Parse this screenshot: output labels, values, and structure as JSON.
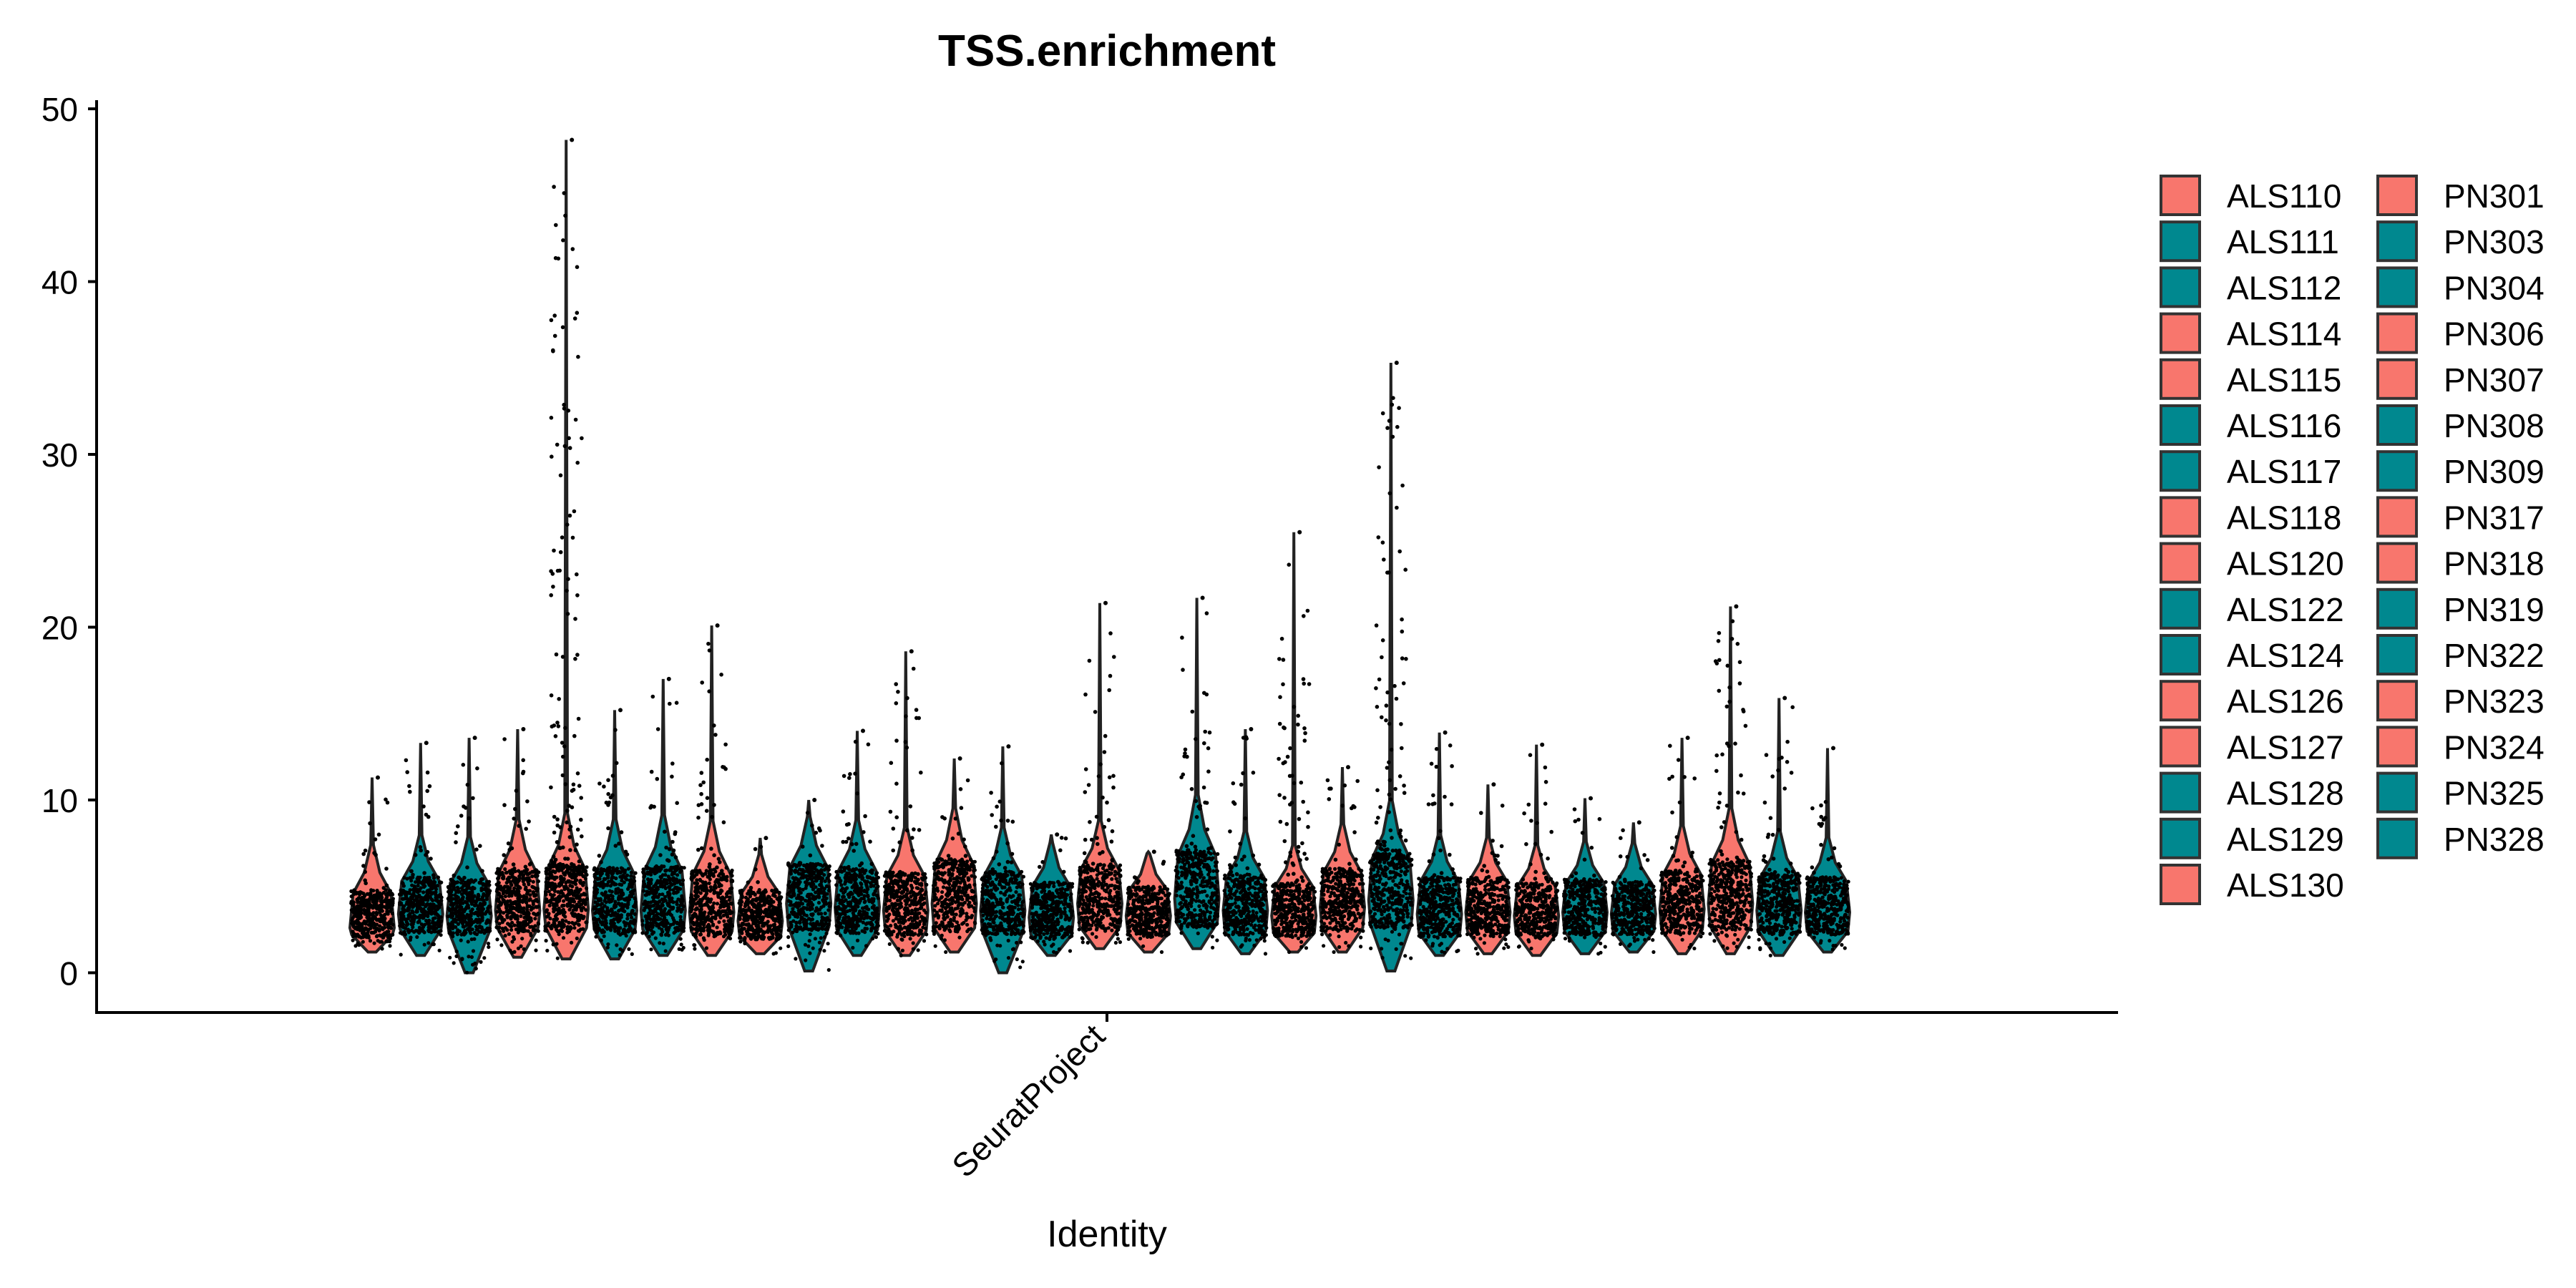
{
  "chart_data": {
    "type": "violin",
    "title": "TSS.enrichment",
    "xlabel": "Identity",
    "ylabel": "",
    "categories": [
      "SeuratProject"
    ],
    "ylim": [
      -2.3,
      50.5
    ],
    "yticks": [
      0,
      10,
      20,
      30,
      40,
      50
    ],
    "grid": false,
    "legend_position": "right",
    "colors": {
      "ALS": "#F8766D",
      "PN": "#00888F",
      "points": "#000000",
      "axis": "#000000"
    },
    "series": [
      {
        "name": "ALS110",
        "color": "#F8766D",
        "min": 1.2,
        "q1": 2.2,
        "median": 2.6,
        "q3": 4.6,
        "max": 11.3
      },
      {
        "name": "ALS111",
        "color": "#00888F",
        "min": 1.0,
        "q1": 2.5,
        "median": 3.4,
        "q3": 5.3,
        "max": 13.3
      },
      {
        "name": "ALS112",
        "color": "#00888F",
        "min": 0.0,
        "q1": 2.4,
        "median": 3.3,
        "q3": 5.2,
        "max": 13.6
      },
      {
        "name": "ALS114",
        "color": "#F8766D",
        "min": 0.9,
        "q1": 2.6,
        "median": 3.6,
        "q3": 5.8,
        "max": 14.1
      },
      {
        "name": "ALS115",
        "color": "#F8766D",
        "min": 0.8,
        "q1": 2.6,
        "median": 3.7,
        "q3": 6.0,
        "max": 48.2
      },
      {
        "name": "ALS116",
        "color": "#00888F",
        "min": 0.8,
        "q1": 2.5,
        "median": 3.6,
        "q3": 5.8,
        "max": 15.2
      },
      {
        "name": "ALS117",
        "color": "#00888F",
        "min": 1.0,
        "q1": 2.5,
        "median": 3.6,
        "q3": 5.9,
        "max": 17.0
      },
      {
        "name": "ALS118",
        "color": "#F8766D",
        "min": 1.0,
        "q1": 2.4,
        "median": 3.5,
        "q3": 5.7,
        "max": 20.1
      },
      {
        "name": "ALS120",
        "color": "#F8766D",
        "min": 1.1,
        "q1": 2.1,
        "median": 3.0,
        "q3": 4.6,
        "max": 7.8
      },
      {
        "name": "ALS122",
        "color": "#00888F",
        "min": 0.1,
        "q1": 2.7,
        "median": 4.0,
        "q3": 6.1,
        "max": 10.0
      },
      {
        "name": "ALS124",
        "color": "#00888F",
        "min": 1.0,
        "q1": 2.5,
        "median": 3.8,
        "q3": 5.9,
        "max": 14.0
      },
      {
        "name": "ALS126",
        "color": "#F8766D",
        "min": 1.0,
        "q1": 2.4,
        "median": 3.6,
        "q3": 5.6,
        "max": 18.6
      },
      {
        "name": "ALS127",
        "color": "#F8766D",
        "min": 1.2,
        "q1": 2.6,
        "median": 4.0,
        "q3": 6.3,
        "max": 12.4
      },
      {
        "name": "ALS128",
        "color": "#00888F",
        "min": 0.0,
        "q1": 2.4,
        "median": 3.6,
        "q3": 5.6,
        "max": 13.1
      },
      {
        "name": "ALS129",
        "color": "#00888F",
        "min": 1.0,
        "q1": 2.2,
        "median": 3.2,
        "q3": 5.0,
        "max": 8.0
      },
      {
        "name": "ALS130",
        "color": "#F8766D",
        "min": 1.4,
        "q1": 2.7,
        "median": 4.0,
        "q3": 6.0,
        "max": 21.4
      },
      {
        "name": "PN301",
        "color": "#F8766D",
        "min": 1.2,
        "q1": 2.3,
        "median": 3.3,
        "q3": 4.8,
        "max": 7.0
      },
      {
        "name": "PN303",
        "color": "#00888F",
        "min": 1.4,
        "q1": 2.9,
        "median": 4.3,
        "q3": 6.8,
        "max": 21.7
      },
      {
        "name": "PN304",
        "color": "#00888F",
        "min": 1.1,
        "q1": 2.4,
        "median": 3.6,
        "q3": 5.5,
        "max": 14.1
      },
      {
        "name": "PN306",
        "color": "#F8766D",
        "min": 1.2,
        "q1": 2.3,
        "median": 3.3,
        "q3": 5.0,
        "max": 25.5
      },
      {
        "name": "PN307",
        "color": "#F8766D",
        "min": 1.2,
        "q1": 2.6,
        "median": 3.8,
        "q3": 5.8,
        "max": 11.9
      },
      {
        "name": "PN308",
        "color": "#00888F",
        "min": 0.1,
        "q1": 2.8,
        "median": 4.2,
        "q3": 6.6,
        "max": 35.3
      },
      {
        "name": "PN309",
        "color": "#00888F",
        "min": 1.0,
        "q1": 2.3,
        "median": 3.4,
        "q3": 5.3,
        "max": 13.9
      },
      {
        "name": "PN317",
        "color": "#F8766D",
        "min": 1.1,
        "q1": 2.4,
        "median": 3.5,
        "q3": 5.3,
        "max": 10.9
      },
      {
        "name": "PN318",
        "color": "#F8766D",
        "min": 1.0,
        "q1": 2.3,
        "median": 3.3,
        "q3": 5.0,
        "max": 13.2
      },
      {
        "name": "PN319",
        "color": "#00888F",
        "min": 1.1,
        "q1": 2.4,
        "median": 3.5,
        "q3": 5.2,
        "max": 10.1
      },
      {
        "name": "PN322",
        "color": "#00888F",
        "min": 1.2,
        "q1": 2.4,
        "median": 3.4,
        "q3": 5.1,
        "max": 8.7
      },
      {
        "name": "PN323",
        "color": "#F8766D",
        "min": 1.1,
        "q1": 2.5,
        "median": 3.7,
        "q3": 5.7,
        "max": 13.6
      },
      {
        "name": "PN324",
        "color": "#F8766D",
        "min": 1.1,
        "q1": 2.7,
        "median": 4.0,
        "q3": 6.3,
        "max": 21.2
      },
      {
        "name": "PN325",
        "color": "#00888F",
        "min": 1.0,
        "q1": 2.4,
        "median": 3.6,
        "q3": 5.5,
        "max": 15.9
      },
      {
        "name": "PN328",
        "color": "#00888F",
        "min": 1.2,
        "q1": 2.4,
        "median": 3.5,
        "q3": 5.3,
        "max": 13.0
      }
    ]
  }
}
